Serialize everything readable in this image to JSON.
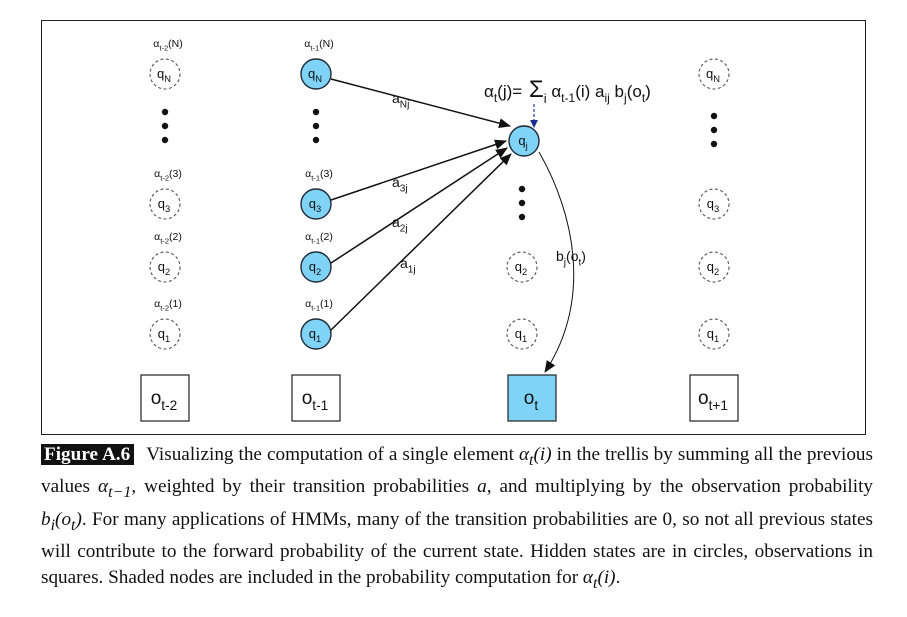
{
  "diagram": {
    "columns": [
      {
        "id": "t-2",
        "shaded": false,
        "alpha": {
          "base": "α",
          "sub": "t-2",
          "args": [
            "(N)",
            "(3)",
            "(2)",
            "(1)"
          ]
        },
        "states": [
          {
            "base": "q",
            "sub": "N"
          },
          {
            "base": "q",
            "sub": "3"
          },
          {
            "base": "q",
            "sub": "2"
          },
          {
            "base": "q",
            "sub": "1"
          }
        ],
        "observation": {
          "base": "o",
          "sub": "t-2"
        }
      },
      {
        "id": "t-1",
        "shaded": true,
        "alpha": {
          "base": "α",
          "sub": "t-1",
          "args": [
            "(N)",
            "(3)",
            "(2)",
            "(1)"
          ]
        },
        "states": [
          {
            "base": "q",
            "sub": "N"
          },
          {
            "base": "q",
            "sub": "3"
          },
          {
            "base": "q",
            "sub": "2"
          },
          {
            "base": "q",
            "sub": "1"
          }
        ],
        "observation": {
          "base": "o",
          "sub": "t-1"
        }
      },
      {
        "id": "t",
        "target_state": {
          "base": "q",
          "sub": "j"
        },
        "states": [
          {
            "base": "q",
            "sub": "2"
          },
          {
            "base": "q",
            "sub": "1"
          }
        ],
        "observation": {
          "base": "o",
          "sub": "t",
          "shaded": true
        }
      },
      {
        "id": "t+1",
        "shaded": false,
        "states": [
          {
            "base": "q",
            "sub": "N"
          },
          {
            "base": "q",
            "sub": "3"
          },
          {
            "base": "q",
            "sub": "2"
          },
          {
            "base": "q",
            "sub": "1"
          }
        ],
        "observation": {
          "base": "o",
          "sub": "t+1"
        }
      }
    ],
    "transition_labels": [
      {
        "base": "a",
        "sub": "Nj"
      },
      {
        "base": "a",
        "sub": "3j"
      },
      {
        "base": "a",
        "sub": "2j"
      },
      {
        "base": "a",
        "sub": "1j"
      }
    ],
    "emission_label": {
      "base": "b",
      "sub": "j",
      "arg_base": "o",
      "arg_sub": "t"
    },
    "formula": {
      "lhs_base": "α",
      "lhs_sub": "t",
      "lhs_arg": "(j)=",
      "sum": "Σ",
      "sum_sub": "i",
      "term1_base": "α",
      "term1_sub": "t-1",
      "term1_arg": "(i)",
      "term2_base": "a",
      "term2_sub": "ij",
      "term3_base": "b",
      "term3_sub": "j",
      "term3_arg_base": "o",
      "term3_arg_sub": "t"
    },
    "colors": {
      "shaded": "#7fd3f6",
      "border": "#222222",
      "arrow": "#111111",
      "formula_arrow": "#1a2d8f"
    }
  },
  "caption": {
    "label": "Figure A.6",
    "p1": "Visualizing the computation of a single element ",
    "m1": "α",
    "m1_sub": "t",
    "m1_rest": "(i)",
    "p2": " in the trellis by summing all the previous values ",
    "m2": "α",
    "m2_sub": "t−1",
    "p3": ", weighted by their transition probabilities ",
    "m3": "a",
    "p4": ", and multiplying by the observation probability ",
    "m4": "b",
    "m4_sub": "i",
    "m4_rest_open": "(",
    "m4_o": "o",
    "m4_o_sub": "t",
    "m4_rest_close": ")",
    "p5": ". For many applications of HMMs, many of the transition probabilities are 0, so not all previous states will contribute to the forward probability of the current state. Hidden states are in circles, observations in squares. Shaded nodes are included in the probability computation for ",
    "m5": "α",
    "m5_sub": "t",
    "m5_rest": "(i)",
    "p6": "."
  }
}
